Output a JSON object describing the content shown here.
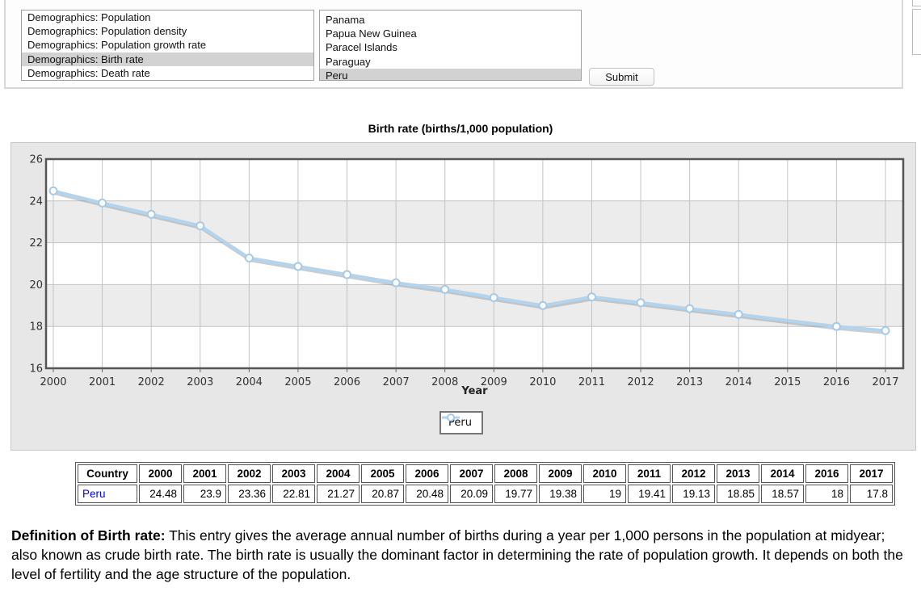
{
  "controls": {
    "metric_list": {
      "items": [
        "Demographics: Population",
        "Demographics: Population density",
        "Demographics: Population growth rate",
        "Demographics: Birth rate",
        "Demographics: Death rate"
      ],
      "selected": "Demographics: Birth rate"
    },
    "country_list": {
      "items": [
        "Panama",
        "Papua New Guinea",
        "Paracel Islands",
        "Paraguay",
        "Peru"
      ],
      "selected": "Peru"
    },
    "submit_label": "Submit"
  },
  "chart_data": {
    "type": "line",
    "title": "Birth rate (births/1,000 population)",
    "xlabel": "Year",
    "ylabel": "",
    "ylim": [
      16,
      26
    ],
    "yticks": [
      16,
      18,
      20,
      22,
      24,
      26
    ],
    "x_ticks": [
      2000,
      2001,
      2002,
      2003,
      2004,
      2005,
      2006,
      2007,
      2008,
      2009,
      2010,
      2011,
      2012,
      2013,
      2014,
      2015,
      2016,
      2017
    ],
    "grid": true,
    "legend_position": "bottom-center",
    "shaded_bands": [
      [
        24,
        22
      ],
      [
        20,
        18
      ]
    ],
    "colors": {
      "line": "#b3d4ef",
      "marker_stroke": "#a5cae8",
      "grid": "#c3c3c3",
      "band": "#ececec",
      "plot_border": "#565656",
      "chart_bg": "#e7e7e7"
    },
    "series": [
      {
        "name": "Peru",
        "marker": "circle-outline",
        "points": [
          [
            2000,
            24.48
          ],
          [
            2001,
            23.9
          ],
          [
            2002,
            23.36
          ],
          [
            2003,
            22.81
          ],
          [
            2004,
            21.27
          ],
          [
            2005,
            20.87
          ],
          [
            2006,
            20.48
          ],
          [
            2007,
            20.09
          ],
          [
            2008,
            19.77
          ],
          [
            2009,
            19.38
          ],
          [
            2010,
            19
          ],
          [
            2011,
            19.41
          ],
          [
            2012,
            19.13
          ],
          [
            2013,
            18.85
          ],
          [
            2014,
            18.57
          ],
          [
            2016,
            18
          ],
          [
            2017,
            17.8
          ]
        ]
      }
    ]
  },
  "table": {
    "headers": [
      "Country",
      "2000",
      "2001",
      "2002",
      "2003",
      "2004",
      "2005",
      "2006",
      "2007",
      "2008",
      "2009",
      "2010",
      "2011",
      "2012",
      "2013",
      "2014",
      "2016",
      "2017"
    ],
    "rows": [
      {
        "country": "Peru",
        "link_color": "#0000ee",
        "values": [
          "24.48",
          "23.9",
          "23.36",
          "22.81",
          "21.27",
          "20.87",
          "20.48",
          "20.09",
          "19.77",
          "19.38",
          "19",
          "19.41",
          "19.13",
          "18.85",
          "18.57",
          "18",
          "17.8"
        ]
      }
    ]
  },
  "definition": {
    "label": "Definition of Birth rate:",
    "text": "This entry gives the average annual number of births during a year per 1,000 persons in the population at midyear; also known as crude birth rate. The birth rate is usually the dominant factor in determining the rate of population growth. It depends on both the level of fertility and the age structure of the population."
  }
}
